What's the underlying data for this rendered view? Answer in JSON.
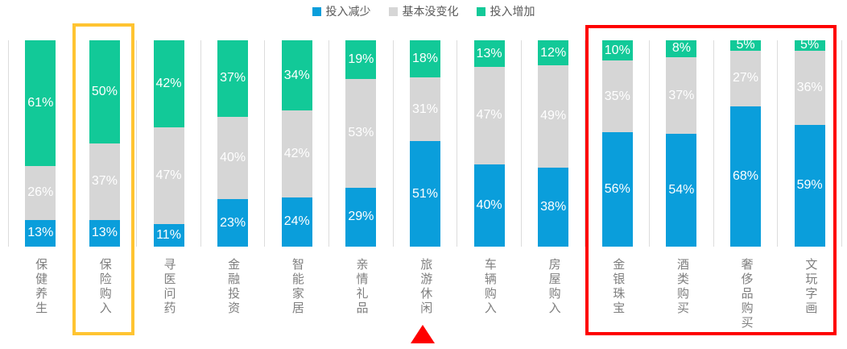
{
  "legend": {
    "items": [
      {
        "label": "投入减少",
        "color": "#0a9edb"
      },
      {
        "label": "基本没变化",
        "color": "#d6d6d6"
      },
      {
        "label": "投入增加",
        "color": "#12c998"
      }
    ]
  },
  "chart_data": {
    "type": "bar",
    "subtype": "100-percent-stacked-column",
    "title": "",
    "xlabel": "",
    "ylabel": "",
    "value_suffix": "%",
    "legend_position": "top",
    "gridlines": "vertical-category-separators",
    "categories": [
      "保健养生",
      "保险购入",
      "寻医问药",
      "金融投资",
      "智能家居",
      "亲情礼品",
      "旅游休闲",
      "车辆购入",
      "房屋购入",
      "金银珠宝",
      "酒类购买",
      "奢侈品购买",
      "文玩字画"
    ],
    "series": [
      {
        "name": "投入减少",
        "color": "#0a9edb",
        "values": [
          13,
          13,
          11,
          23,
          24,
          29,
          51,
          40,
          38,
          56,
          54,
          68,
          59
        ]
      },
      {
        "name": "基本没变化",
        "color": "#d6d6d6",
        "values": [
          26,
          37,
          47,
          40,
          42,
          53,
          31,
          47,
          49,
          35,
          37,
          27,
          36
        ]
      },
      {
        "name": "投入增加",
        "color": "#12c998",
        "values": [
          61,
          50,
          42,
          37,
          34,
          19,
          18,
          13,
          12,
          10,
          8,
          5,
          5
        ]
      }
    ],
    "annotations": {
      "yellow_box_category": "保险购入",
      "red_box_categories": [
        "金银珠宝",
        "酒类购买",
        "奢侈品购买",
        "文玩字画"
      ],
      "red_triangle_category": "旅游休闲"
    }
  },
  "colors": {
    "highlight_yellow": "#ffc431",
    "highlight_red": "#fe0000",
    "separator_gray": "#dcdcdc",
    "category_text": "#7f7f7f",
    "legend_text": "#595959",
    "data_label_text": "#ffffff"
  }
}
